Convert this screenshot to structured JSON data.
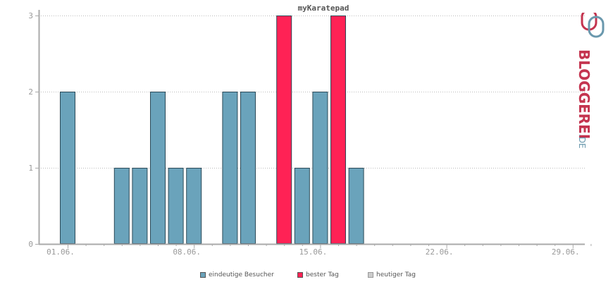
{
  "chart_data": {
    "type": "bar",
    "title": "myKaratepad",
    "x_labels": [
      "01.06.",
      "08.06.",
      "15.06.",
      "22.06.",
      "29.06."
    ],
    "x_label_days": [
      1,
      8,
      15,
      22,
      29
    ],
    "days": [
      1,
      2,
      3,
      4,
      5,
      6,
      7,
      8,
      9,
      10,
      11,
      12,
      13,
      14,
      15,
      16,
      17,
      18,
      19,
      20,
      21,
      22,
      23,
      24,
      25,
      26,
      27,
      28,
      29,
      30
    ],
    "values": [
      2,
      0,
      0,
      1,
      1,
      2,
      1,
      1,
      0,
      2,
      2,
      0,
      3,
      1,
      2,
      3,
      1,
      0,
      0,
      0,
      0,
      0,
      0,
      0,
      0,
      0,
      0,
      0,
      0,
      0
    ],
    "best_days": [
      13,
      16
    ],
    "ylim": [
      0,
      3
    ],
    "yticks": [
      0,
      1,
      2,
      3
    ],
    "grid": true,
    "legend_position": "bottom",
    "colors": {
      "eindeutige_besucher": "#6aa3bb",
      "bester_tag": "#ff2255",
      "heutiger_tag": "#cccccc",
      "bar_border": "#2c4a58",
      "axis": "#aaaaaa"
    }
  },
  "legend": [
    {
      "label": "eindeutige Besucher",
      "color": "#6aa3bb"
    },
    {
      "label": "bester Tag",
      "color": "#ff2255"
    },
    {
      "label": "heutiger Tag",
      "color": "#cccccc"
    }
  ],
  "logo": {
    "text": "BLOGGEREI",
    "suffix": ".DE",
    "color_main": "#c4344f",
    "color_suffix": "#6a98ad"
  }
}
